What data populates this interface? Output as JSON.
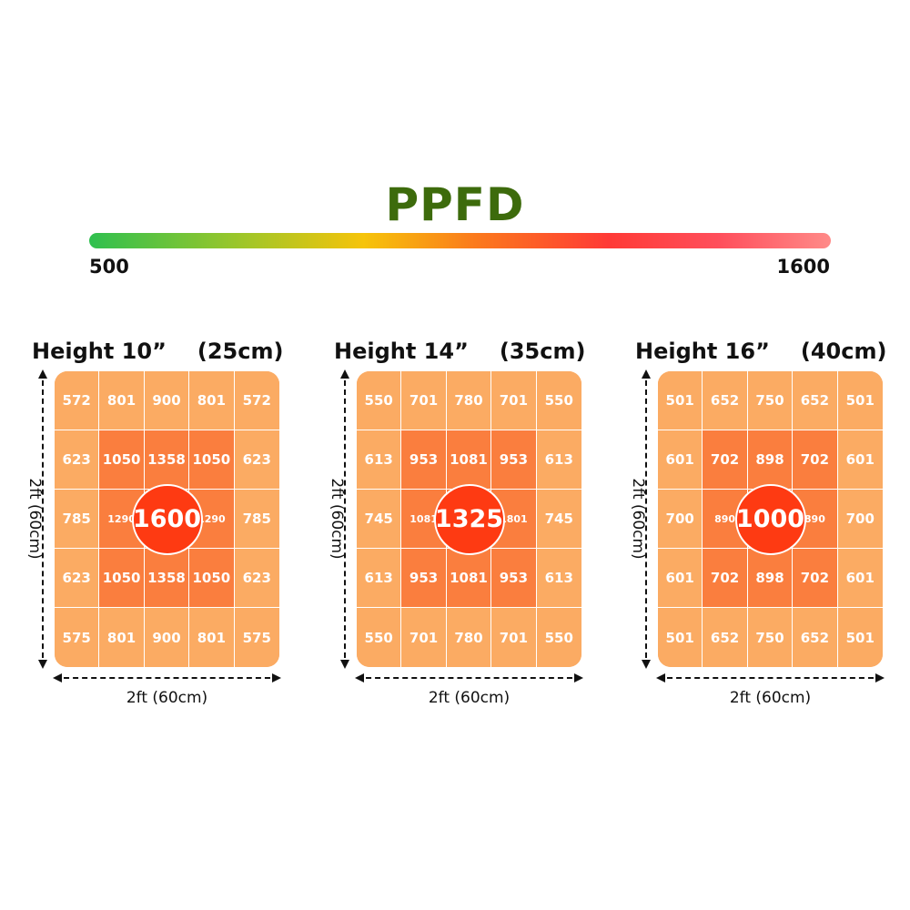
{
  "chart_data": {
    "type": "heatmap",
    "title": "PPFD",
    "colorbar": {
      "min_label": "500",
      "max_label": "1600",
      "min": 500,
      "max": 1600
    },
    "colors": {
      "outer": "#fbab63",
      "inner": "#fa7e3e",
      "center": "#fe3a12",
      "title": "#3d6b0c"
    },
    "panels": [
      {
        "height_label": "Height 10”",
        "metric_label": "(25cm)",
        "x_label": "2ft (60cm)",
        "y_label": "2ft (60cm)",
        "center": "1600",
        "rows": [
          [
            "572",
            "801",
            "900",
            "801",
            "572"
          ],
          [
            "623",
            "1050",
            "1358",
            "1050",
            "623"
          ],
          [
            "785",
            "1290",
            "1600",
            "1290",
            "785"
          ],
          [
            "623",
            "1050",
            "1358",
            "1050",
            "623"
          ],
          [
            "575",
            "801",
            "900",
            "801",
            "575"
          ]
        ]
      },
      {
        "height_label": "Height 14”",
        "metric_label": "(35cm)",
        "x_label": "2ft (60cm)",
        "y_label": "2ft (60cm)",
        "center": "1325",
        "rows": [
          [
            "550",
            "701",
            "780",
            "701",
            "550"
          ],
          [
            "613",
            "953",
            "1081",
            "953",
            "613"
          ],
          [
            "745",
            "1081",
            "1325",
            "1801",
            "745"
          ],
          [
            "613",
            "953",
            "1081",
            "953",
            "613"
          ],
          [
            "550",
            "701",
            "780",
            "701",
            "550"
          ]
        ]
      },
      {
        "height_label": "Height 16”",
        "metric_label": "(40cm)",
        "x_label": "2ft (60cm)",
        "y_label": "2ft (60cm)",
        "center": "1000",
        "rows": [
          [
            "501",
            "652",
            "750",
            "652",
            "501"
          ],
          [
            "601",
            "702",
            "898",
            "702",
            "601"
          ],
          [
            "700",
            "890",
            "1000",
            "890",
            "700"
          ],
          [
            "601",
            "702",
            "898",
            "702",
            "601"
          ],
          [
            "501",
            "652",
            "750",
            "652",
            "501"
          ]
        ]
      }
    ]
  }
}
